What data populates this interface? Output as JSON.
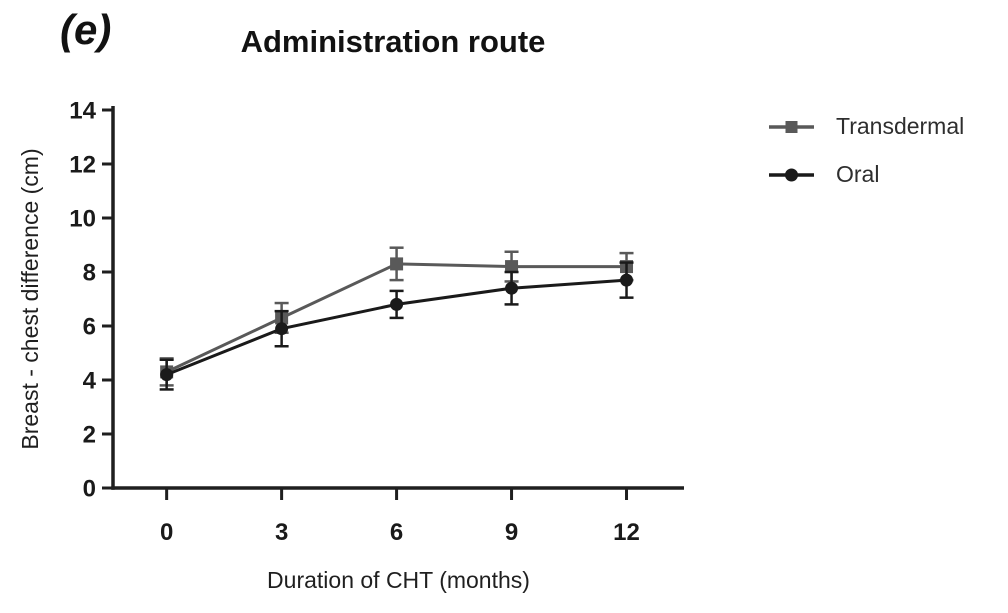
{
  "panel_label": "(e)",
  "chart_data": {
    "type": "line",
    "title": "Administration route",
    "x": [
      0,
      3,
      6,
      9,
      12
    ],
    "xlabel": "Duration of CHT (months)",
    "ylabel": "Breast - chest difference (cm)",
    "xlim": [
      -1.4,
      13.5
    ],
    "ylim": [
      0,
      14
    ],
    "xticks": [
      0,
      3,
      6,
      9,
      12
    ],
    "yticks": [
      0,
      2,
      4,
      6,
      8,
      10,
      12,
      14
    ],
    "grid": false,
    "legend_position": "right",
    "series": [
      {
        "name": "Transdermal",
        "color": "#595959",
        "marker": "square",
        "values": [
          4.3,
          6.3,
          8.3,
          8.2,
          8.2
        ],
        "errors": [
          0.5,
          0.55,
          0.6,
          0.55,
          0.5
        ]
      },
      {
        "name": "Oral",
        "color": "#1a1a1a",
        "marker": "circle",
        "values": [
          4.2,
          5.9,
          6.8,
          7.4,
          7.7
        ],
        "errors": [
          0.55,
          0.65,
          0.5,
          0.6,
          0.65
        ]
      }
    ]
  },
  "colors": {
    "axis": "#1f1f1f",
    "background": "#ffffff",
    "text": "#1a1a1a"
  }
}
